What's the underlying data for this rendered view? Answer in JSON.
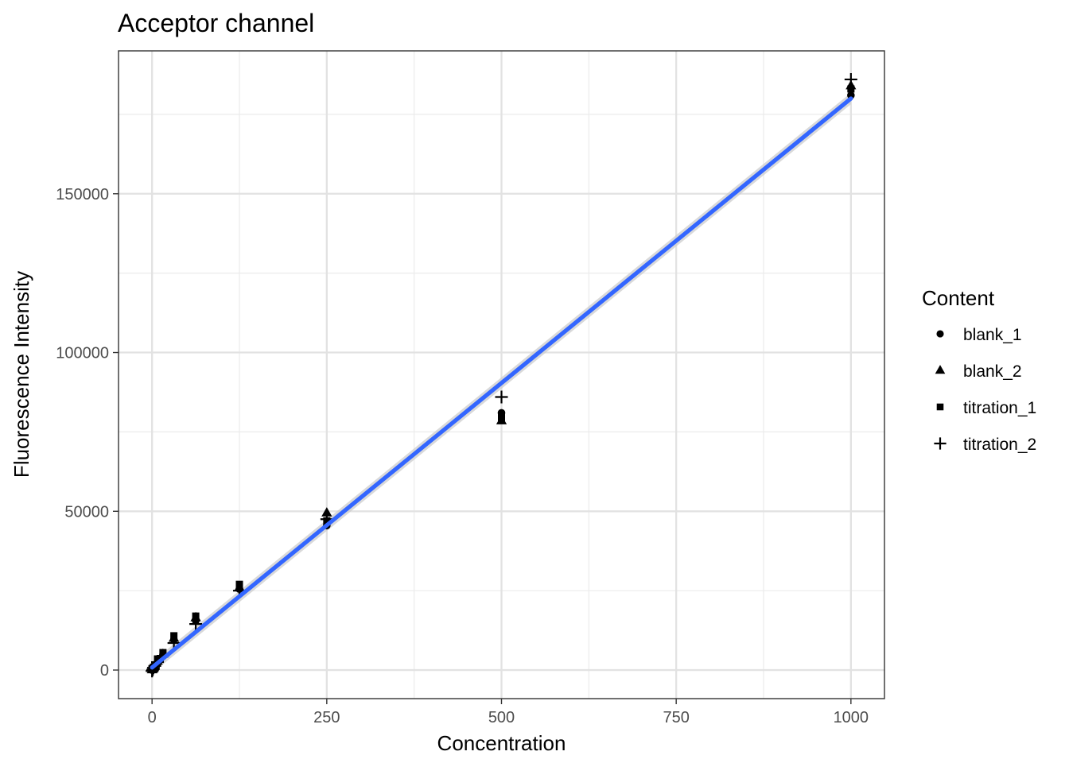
{
  "chart_data": {
    "type": "scatter",
    "title": "Acceptor channel",
    "xlabel": "Concentration",
    "ylabel": "Fluorescence Intensity",
    "xlim": [
      -48,
      1048
    ],
    "ylim": [
      -9000,
      195000
    ],
    "x_ticks": [
      0,
      250,
      500,
      750,
      1000
    ],
    "y_ticks": [
      0,
      50000,
      100000,
      150000
    ],
    "x_minor_ticks": [
      125,
      375,
      625,
      875
    ],
    "y_minor_ticks": [
      25000,
      75000,
      125000,
      175000
    ],
    "grid": true,
    "legend": {
      "title": "Content",
      "position": "right"
    },
    "series": [
      {
        "name": "blank_1",
        "shape": "circle",
        "points": [
          {
            "x": 0,
            "y": 0
          },
          {
            "x": 1,
            "y": 200
          },
          {
            "x": 2,
            "y": 400
          },
          {
            "x": 3.9,
            "y": 800
          },
          {
            "x": 7.8,
            "y": 2200
          },
          {
            "x": 15.6,
            "y": 4800
          },
          {
            "x": 31.25,
            "y": 9500
          },
          {
            "x": 62.5,
            "y": 15500
          },
          {
            "x": 125,
            "y": 25500
          },
          {
            "x": 250,
            "y": 45500
          },
          {
            "x": 500,
            "y": 81000
          },
          {
            "x": 1000,
            "y": 181000
          }
        ]
      },
      {
        "name": "blank_2",
        "shape": "triangle",
        "points": [
          {
            "x": 0,
            "y": 100
          },
          {
            "x": 1,
            "y": 300
          },
          {
            "x": 2,
            "y": 600
          },
          {
            "x": 3.9,
            "y": 1200
          },
          {
            "x": 7.8,
            "y": 2800
          },
          {
            "x": 15.6,
            "y": 5000
          },
          {
            "x": 31.25,
            "y": 10000
          },
          {
            "x": 62.5,
            "y": 16500
          },
          {
            "x": 125,
            "y": 26000
          },
          {
            "x": 250,
            "y": 49500
          },
          {
            "x": 500,
            "y": 78500
          },
          {
            "x": 1000,
            "y": 184000
          }
        ]
      },
      {
        "name": "titration_1",
        "shape": "square",
        "points": [
          {
            "x": 0,
            "y": 200
          },
          {
            "x": 1,
            "y": 500
          },
          {
            "x": 2,
            "y": 900
          },
          {
            "x": 3.9,
            "y": 1600
          },
          {
            "x": 7.8,
            "y": 3500
          },
          {
            "x": 15.6,
            "y": 5500
          },
          {
            "x": 31.25,
            "y": 10800
          },
          {
            "x": 62.5,
            "y": 17000
          },
          {
            "x": 125,
            "y": 27000
          },
          {
            "x": 250,
            "y": 47000
          },
          {
            "x": 500,
            "y": 79500
          },
          {
            "x": 1000,
            "y": 183000
          }
        ]
      },
      {
        "name": "titration_2",
        "shape": "plus",
        "points": [
          {
            "x": 0,
            "y": -300
          },
          {
            "x": 1,
            "y": 100
          },
          {
            "x": 2,
            "y": 700
          },
          {
            "x": 3.9,
            "y": 1300
          },
          {
            "x": 7.8,
            "y": 2500
          },
          {
            "x": 15.6,
            "y": 4500
          },
          {
            "x": 31.25,
            "y": 8500
          },
          {
            "x": 62.5,
            "y": 14500
          },
          {
            "x": 125,
            "y": 25000
          },
          {
            "x": 250,
            "y": 47500
          },
          {
            "x": 500,
            "y": 86000
          },
          {
            "x": 1000,
            "y": 186000
          }
        ]
      }
    ],
    "fit_line": {
      "type": "linear",
      "color": "#3366ff",
      "band_color": "#cccccc",
      "from": {
        "x": 0,
        "y": 800
      },
      "to": {
        "x": 1000,
        "y": 180000
      },
      "band_halfwidth_at_ends": 1800
    }
  }
}
